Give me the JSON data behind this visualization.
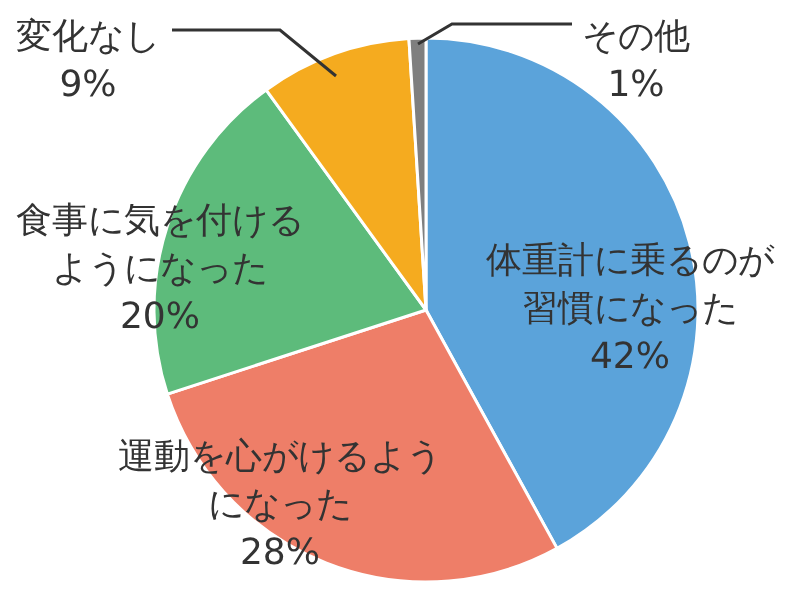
{
  "chart_data": {
    "type": "pie",
    "categories": [
      "体重計に乗るのが習慣になった",
      "運動を心がけるようになった",
      "食事に気を付けるようになった",
      "変化なし",
      "その他"
    ],
    "values": [
      42,
      28,
      20,
      9,
      1
    ],
    "value_labels": [
      "42%",
      "28%",
      "20%",
      "9%",
      "1%"
    ],
    "colors": [
      "#5ba3da",
      "#ee7e68",
      "#5dbb7b",
      "#f5ab1f",
      "#7f7f7f"
    ]
  }
}
